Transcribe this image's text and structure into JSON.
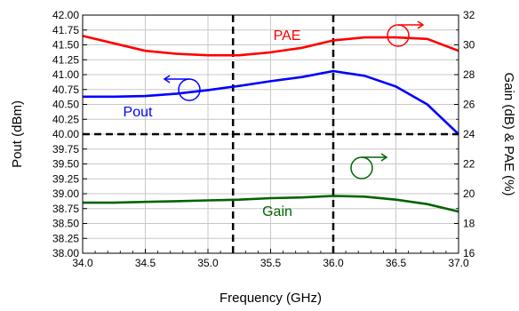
{
  "chart_data": {
    "type": "line",
    "title": "",
    "xlabel": "Frequency (GHz)",
    "ylabel_left": "Pout (dBm)",
    "ylabel_right": "Gain (dB) & PAE (%)",
    "x_ticks": [
      "34.0",
      "34.5",
      "35.0",
      "35.5",
      "36.0",
      "36.5",
      "37.0"
    ],
    "y_left_ticks": [
      "38.00",
      "38.25",
      "38.50",
      "38.75",
      "39.00",
      "39.25",
      "39.50",
      "39.75",
      "40.00",
      "40.25",
      "40.50",
      "40.75",
      "41.00",
      "41.25",
      "41.50",
      "41.75",
      "42.00"
    ],
    "y_right_ticks": [
      "16",
      "18",
      "20",
      "22",
      "24",
      "26",
      "28",
      "30",
      "32"
    ],
    "xlim": [
      34.0,
      37.0
    ],
    "ylim_left": [
      38.0,
      42.0
    ],
    "ylim_right": [
      16,
      32
    ],
    "grid": true,
    "series": [
      {
        "name": "Pout",
        "axis": "left",
        "color": "#0000ff",
        "x": [
          34.0,
          34.25,
          34.5,
          34.75,
          35.0,
          35.25,
          35.5,
          35.75,
          36.0,
          36.25,
          36.5,
          36.75,
          37.0
        ],
        "y": [
          40.63,
          40.63,
          40.64,
          40.68,
          40.74,
          40.81,
          40.89,
          40.96,
          41.06,
          40.98,
          40.8,
          40.5,
          40.0
        ]
      },
      {
        "name": "PAE",
        "axis": "right",
        "color": "#ff0000",
        "x": [
          34.0,
          34.25,
          34.5,
          34.75,
          35.0,
          35.25,
          35.5,
          35.75,
          36.0,
          36.25,
          36.5,
          36.75,
          37.0
        ],
        "y": [
          30.6,
          30.1,
          29.6,
          29.4,
          29.3,
          29.3,
          29.5,
          29.8,
          30.3,
          30.5,
          30.5,
          30.4,
          29.6
        ]
      },
      {
        "name": "Gain",
        "axis": "right",
        "color": "#006400",
        "x": [
          34.0,
          34.25,
          34.5,
          34.75,
          35.0,
          35.25,
          35.5,
          35.75,
          36.0,
          36.25,
          36.5,
          36.75,
          37.0
        ],
        "y": [
          19.4,
          19.4,
          19.45,
          19.5,
          19.55,
          19.6,
          19.7,
          19.75,
          19.85,
          19.8,
          19.6,
          19.3,
          18.8
        ]
      }
    ],
    "reference_lines": [
      {
        "orientation": "vertical",
        "axis": "x",
        "value": 35.2
      },
      {
        "orientation": "vertical",
        "axis": "x",
        "value": 36.0
      },
      {
        "orientation": "horizontal",
        "axis": "left",
        "value": 40.0
      }
    ]
  }
}
